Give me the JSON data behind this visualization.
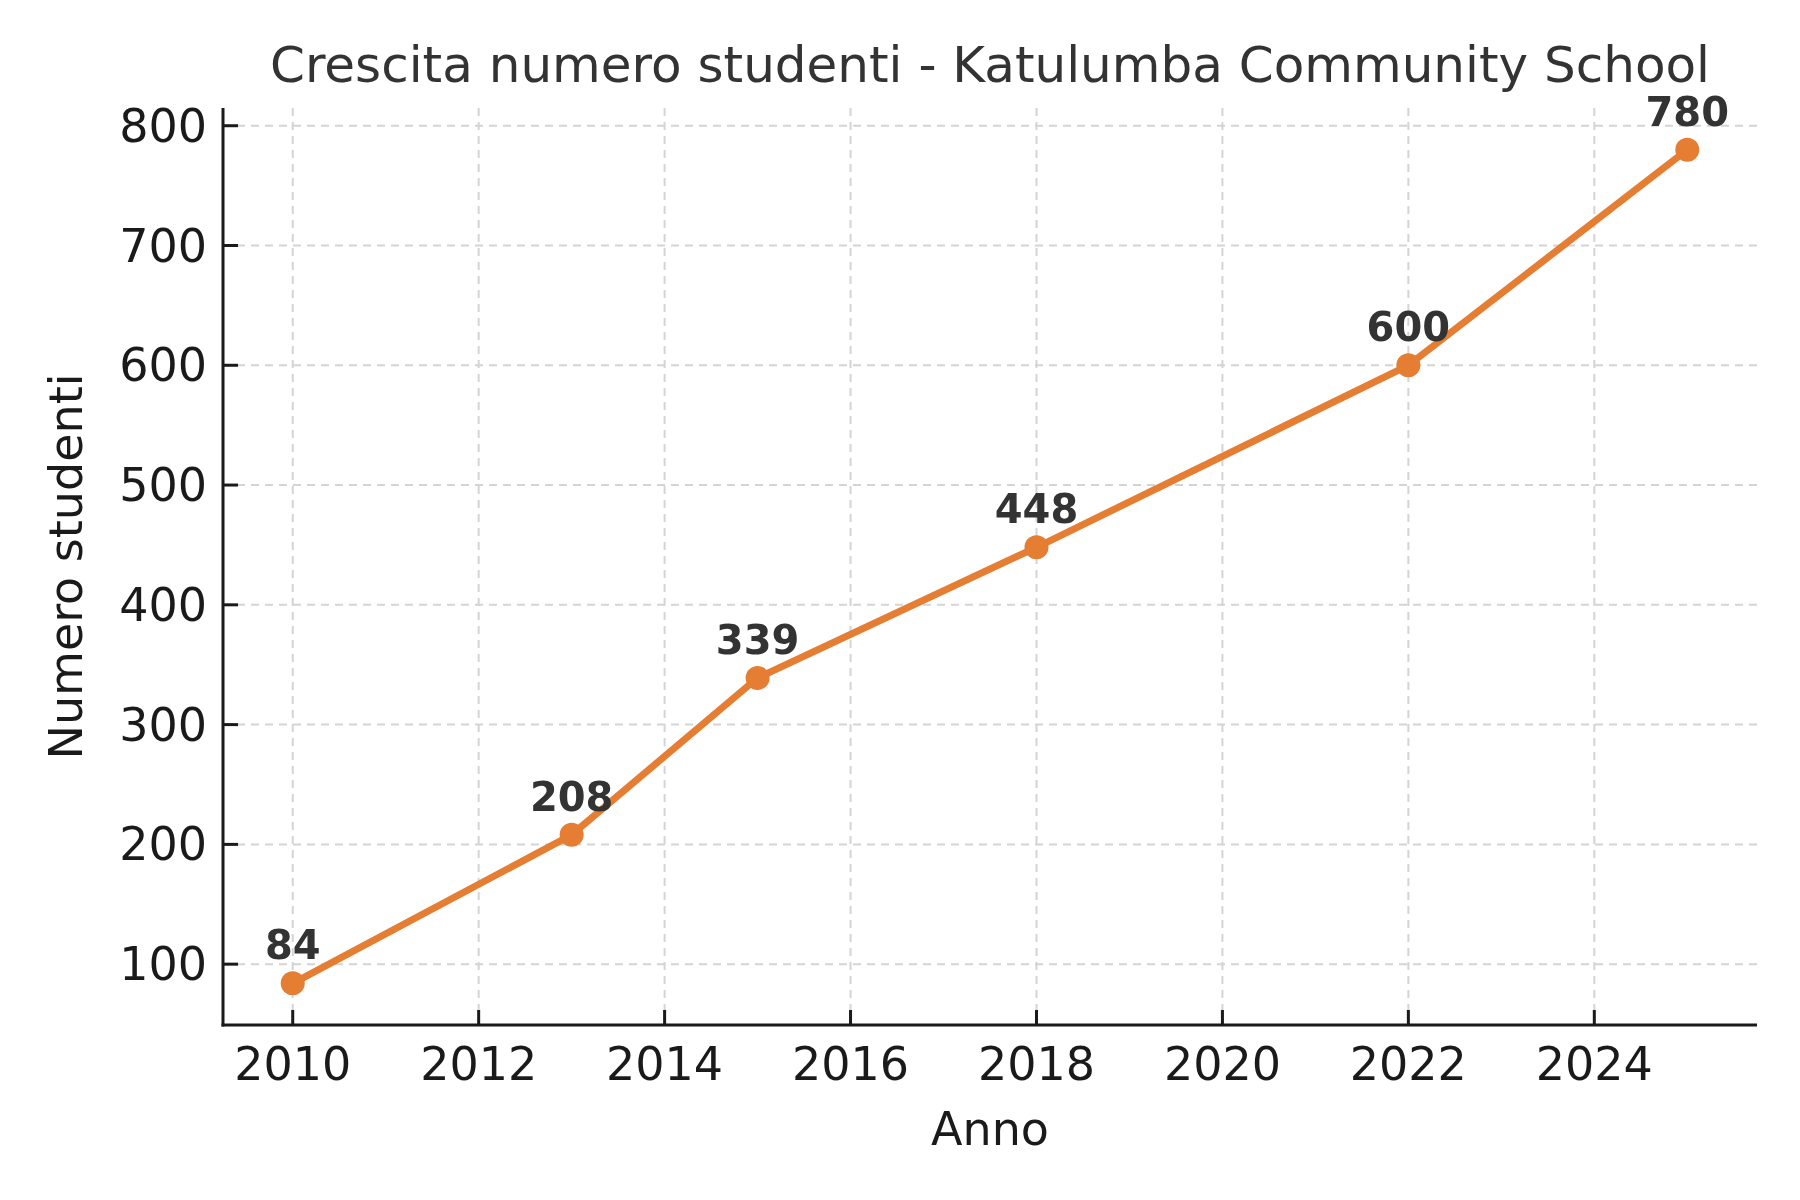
{
  "chart_data": {
    "type": "line",
    "title": "Crescita numero studenti - Katulumba Community School",
    "xlabel": "Anno",
    "ylabel": "Numero studenti",
    "x": [
      2010,
      2013,
      2015,
      2018,
      2022,
      2025
    ],
    "series": [
      {
        "color": "#e57d33",
        "values": [
          84,
          208,
          339,
          448,
          600,
          780
        ]
      }
    ],
    "xlim": [
      2009.25,
      2025.75
    ],
    "ylim": [
      49.2,
      814.8
    ],
    "xticks": [
      2010,
      2012,
      2014,
      2016,
      2018,
      2020,
      2022,
      2024
    ],
    "yticks": [
      100,
      200,
      300,
      400,
      500,
      600,
      700,
      800
    ],
    "grid": true,
    "marker": "circle",
    "line_style": "solid",
    "data_labels": true
  }
}
